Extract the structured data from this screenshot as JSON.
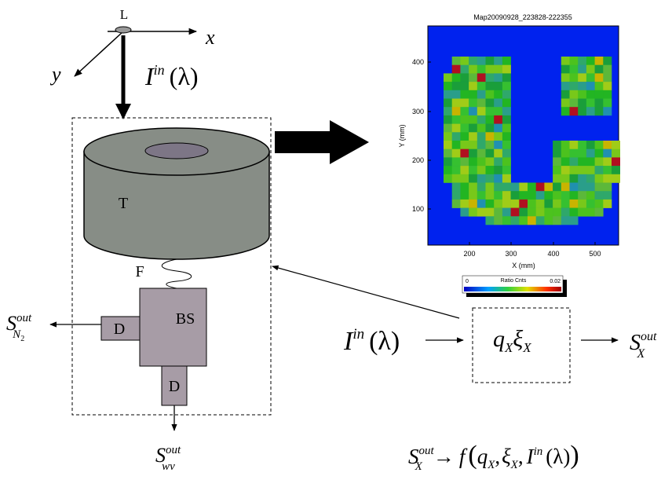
{
  "axes_labels": {
    "L": "L",
    "x": "x",
    "y": "y"
  },
  "input_top": {
    "base": "I",
    "sup": "in",
    "arg": "(λ)"
  },
  "components": {
    "telescope": "T",
    "fiber": "F",
    "beam_splitter": "BS",
    "detector_left": "D",
    "detector_bottom": "D"
  },
  "output_n2": {
    "base": "S",
    "sup": "out",
    "sub": "N",
    "subsub": "2"
  },
  "output_wv": {
    "base": "S",
    "sup": "out",
    "sub": "wv"
  },
  "map": {
    "title": "Map20090928_223828-222355",
    "x_label": "X (mm)",
    "y_label": "Y (mm)",
    "x_ticks": [
      "200",
      "300",
      "400",
      "500"
    ],
    "y_ticks": [
      "100",
      "200",
      "300",
      "400"
    ],
    "colorbar": {
      "min": "0",
      "label": "Ratio Cnts",
      "max": "0.02"
    }
  },
  "model": {
    "input": {
      "base": "I",
      "sup": "in",
      "arg": "(λ)"
    },
    "box": {
      "q": "q",
      "q_sub": "X",
      "xi": "ξ",
      "xi_sub": "X"
    },
    "output": {
      "base": "S",
      "sup": "out",
      "sub": "X"
    }
  },
  "relation": {
    "lhs_base": "S",
    "lhs_sup": "out",
    "lhs_sub": "X",
    "arrow": "→",
    "f": "f",
    "open": "(",
    "q": "q",
    "q_sub": "X",
    "comma1": ",",
    "xi": "ξ",
    "xi_sub": "X",
    "comma2": ",",
    "i_base": "I",
    "i_sup": "in",
    "i_arg": "(λ)",
    "close": ")"
  }
}
